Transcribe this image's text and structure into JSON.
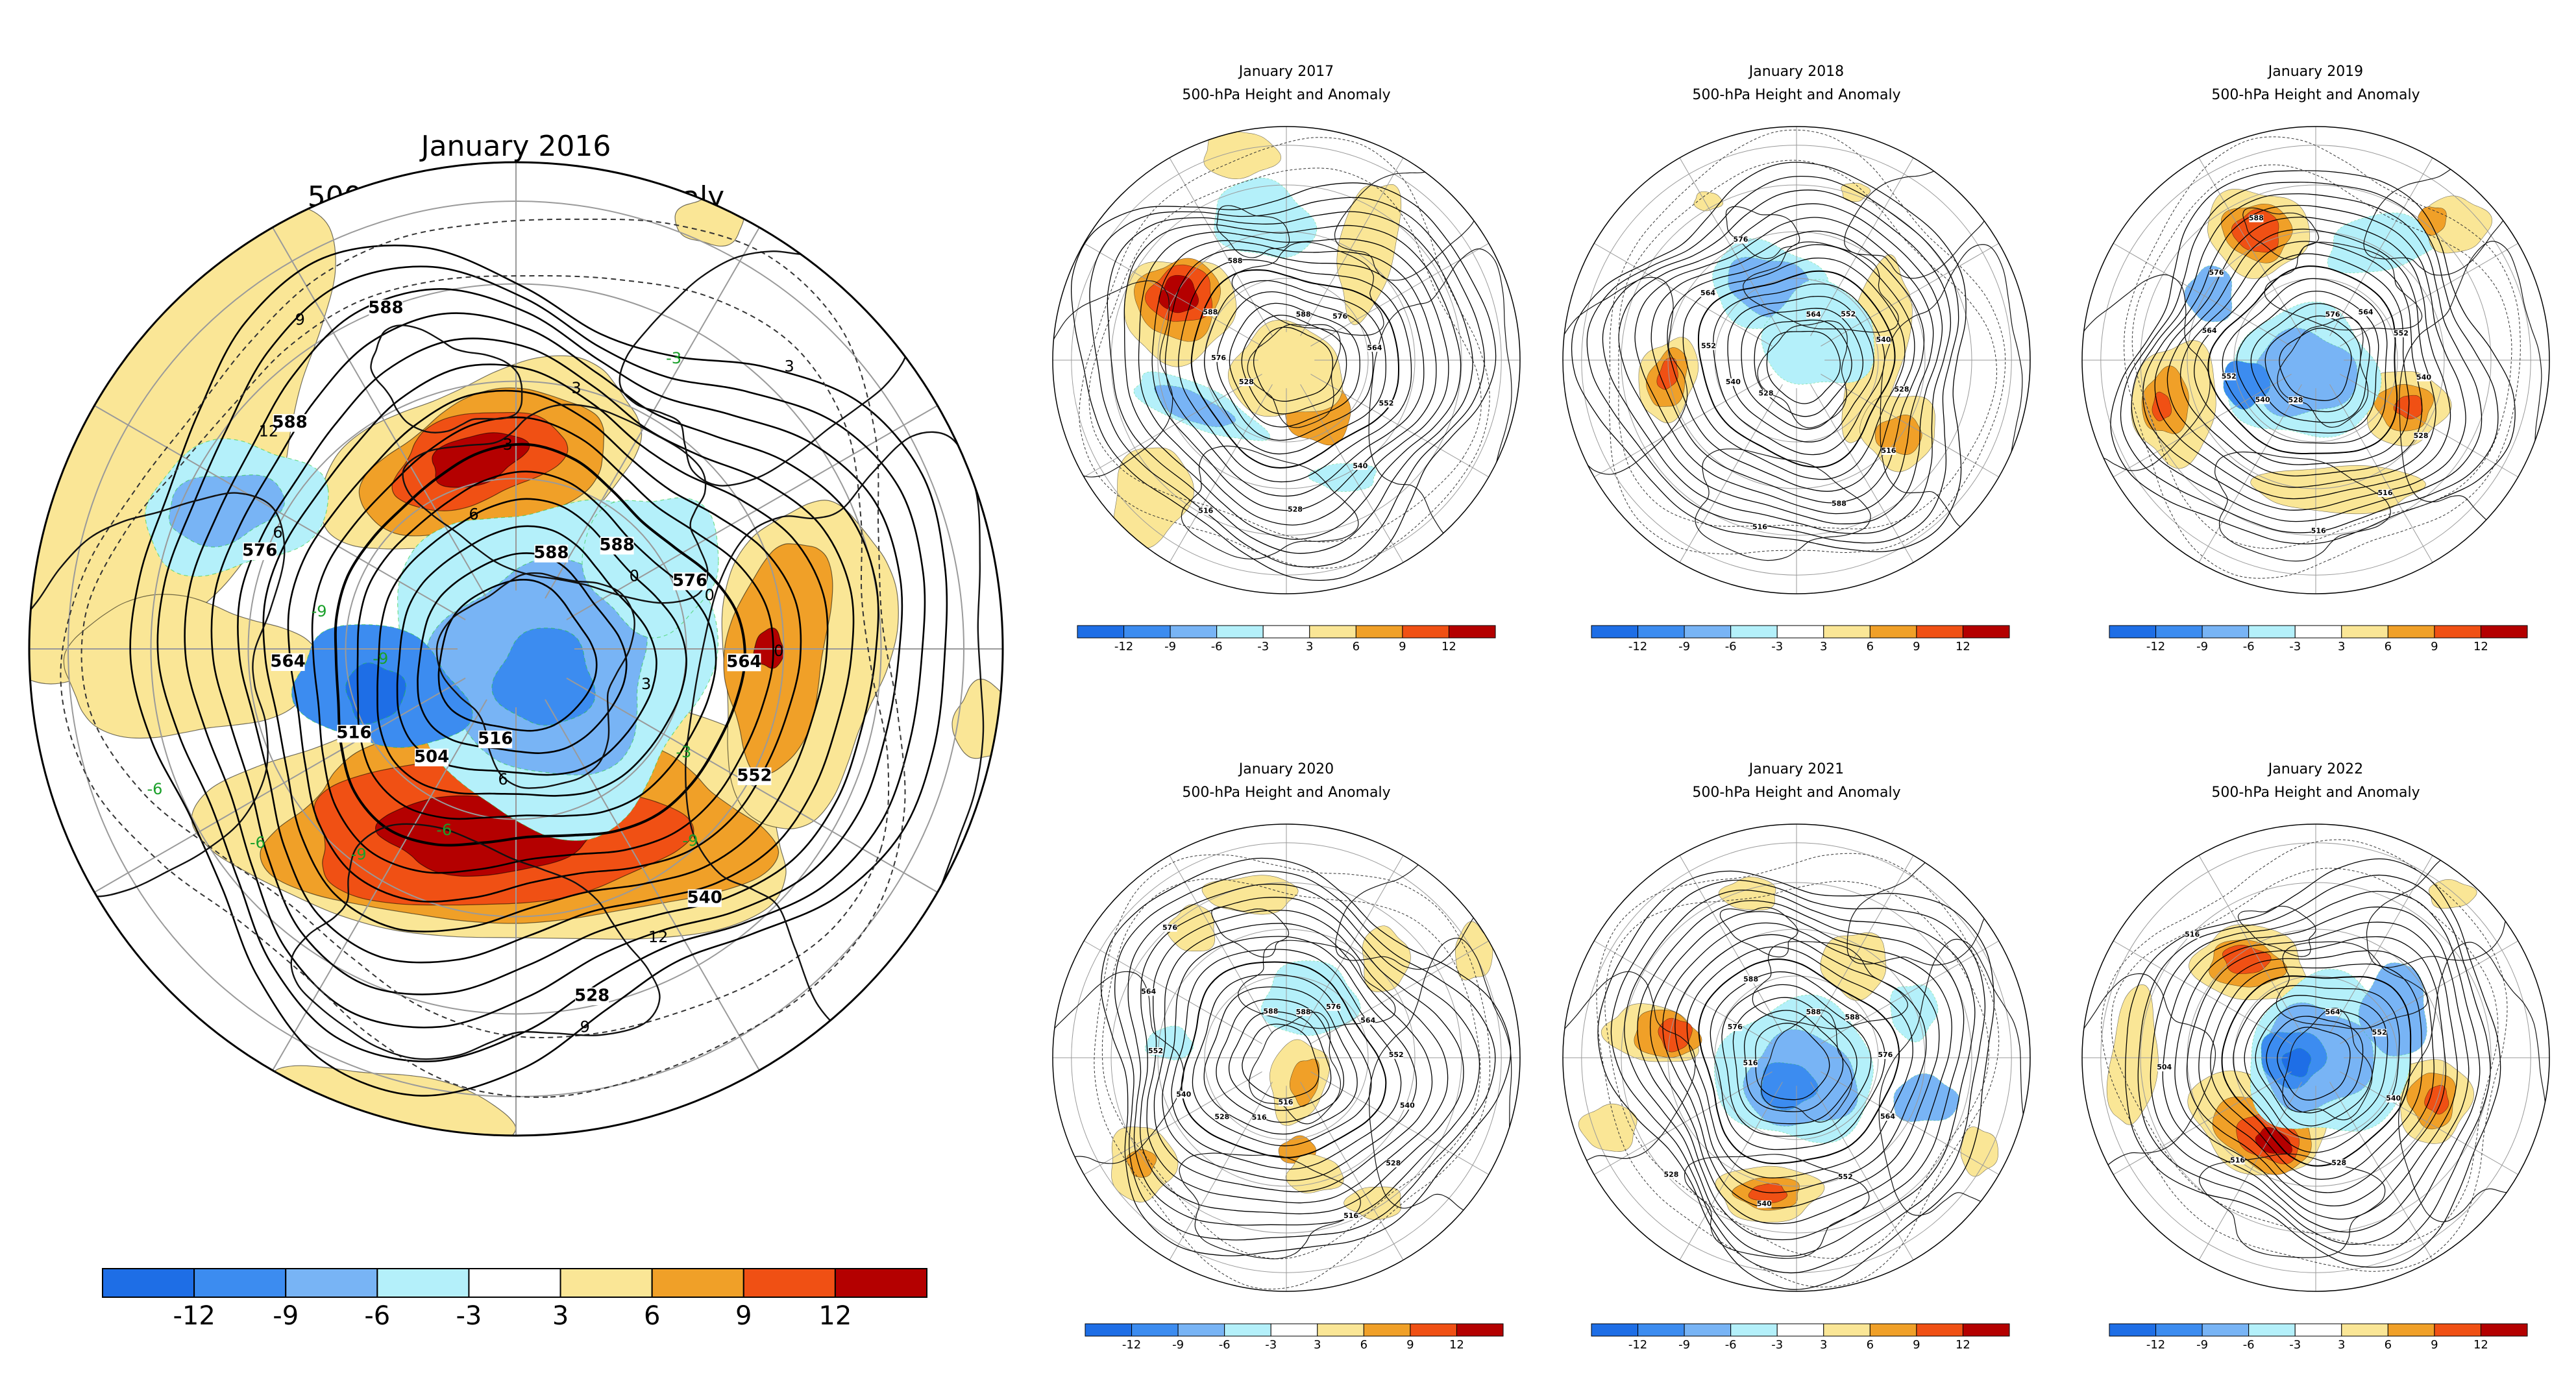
{
  "legend": {
    "colors": [
      "#1e6ee6",
      "#3c8cf0",
      "#78b4f5",
      "#b4f0fa",
      "#ffffff",
      "#fae696",
      "#f0a028",
      "#f05014",
      "#b40000"
    ],
    "tick_labels": [
      "-12",
      "-9",
      "-6",
      "-3",
      "3",
      "6",
      "9",
      "12"
    ]
  },
  "panels": [
    {
      "title": "January 2016",
      "subtitle": "500-hPa Height and Anomaly",
      "contour_labels": [
        "588",
        "588",
        "576",
        "564",
        "552",
        "540",
        "528",
        "516",
        "504",
        "516",
        "564",
        "576",
        "588",
        "588"
      ],
      "anomaly_labels": [
        "3",
        "-3",
        "-9",
        "12",
        "9",
        "6",
        "-6",
        "-9",
        "-6",
        "-6",
        "-9",
        "-9",
        "6",
        "12",
        "9",
        "6",
        "3",
        "3",
        "-3",
        "3",
        "0",
        "0",
        "0"
      ]
    },
    {
      "title": "January 2017",
      "subtitle": "500-hPa Height and Anomaly",
      "contour_labels": [
        "588",
        "576",
        "564",
        "552",
        "540",
        "528",
        "516",
        "528",
        "576",
        "588",
        "588"
      ],
      "anomaly_labels": []
    },
    {
      "title": "January 2018",
      "subtitle": "500-hPa Height and Anomaly",
      "contour_labels": [
        "564",
        "552",
        "540",
        "528",
        "516",
        "588",
        "516",
        "528",
        "540",
        "552",
        "564",
        "576"
      ],
      "anomaly_labels": []
    },
    {
      "title": "January 2019",
      "subtitle": "500-hPa Height and Anomaly",
      "contour_labels": [
        "576",
        "564",
        "552",
        "540",
        "528",
        "516",
        "516",
        "528",
        "540",
        "552",
        "564",
        "576",
        "588"
      ],
      "anomaly_labels": []
    },
    {
      "title": "January 2020",
      "subtitle": "500-hPa Height and Anomaly",
      "contour_labels": [
        "588",
        "576",
        "564",
        "552",
        "540",
        "528",
        "516",
        "516",
        "516",
        "528",
        "540",
        "552",
        "564",
        "576",
        "588"
      ],
      "anomaly_labels": []
    },
    {
      "title": "January 2021",
      "subtitle": "500-hPa Height and Anomaly",
      "contour_labels": [
        "588",
        "588",
        "576",
        "564",
        "552",
        "540",
        "528",
        "516",
        "576",
        "588"
      ],
      "anomaly_labels": []
    },
    {
      "title": "January 2022",
      "subtitle": "500-hPa Height and Anomaly",
      "contour_labels": [
        "564",
        "552",
        "540",
        "528",
        "516",
        "504",
        "516"
      ],
      "anomaly_labels": []
    }
  ]
}
